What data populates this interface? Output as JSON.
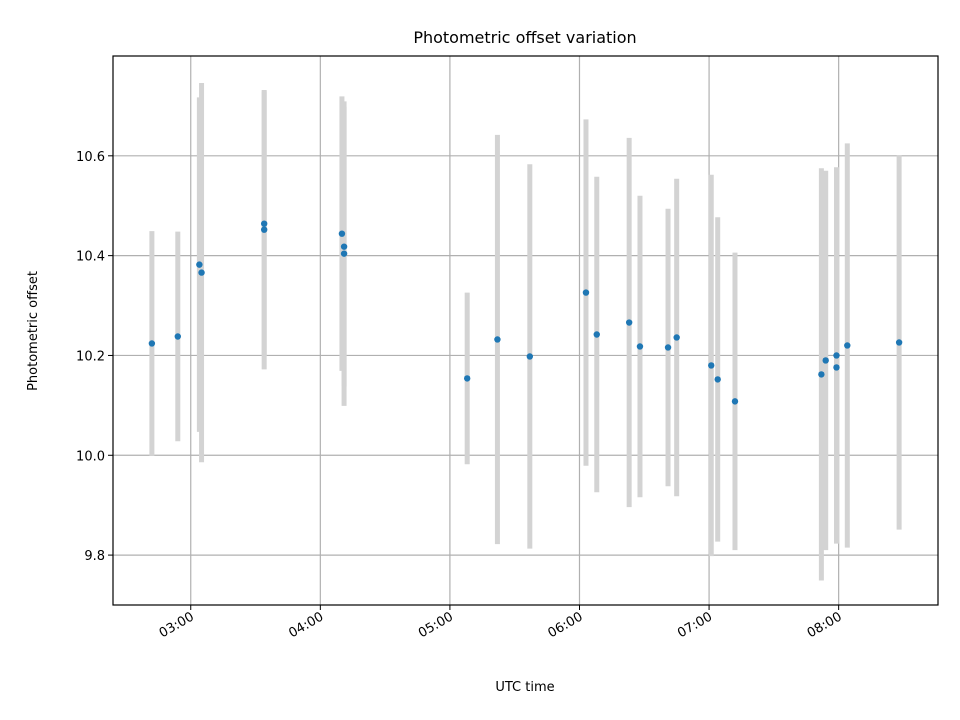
{
  "chart_data": {
    "type": "scatter",
    "title": "Photometric offset variation",
    "xlabel": "UTC time",
    "ylabel": "Photometric offset",
    "x_range": [
      "02:24",
      "08:46"
    ],
    "ylim": [
      9.7,
      10.8
    ],
    "x_ticks": [
      "03:00",
      "04:00",
      "05:00",
      "06:00",
      "07:00",
      "08:00"
    ],
    "y_ticks": [
      9.8,
      10.0,
      10.2,
      10.4,
      10.6
    ],
    "y_tick_labels": [
      "9.8",
      "10.0",
      "10.2",
      "10.4",
      "10.6"
    ],
    "grid": true,
    "point_color": "#1f77b4",
    "errorbar_color": "#d3d3d3",
    "points": [
      {
        "time": "02:42",
        "y": 10.224,
        "yerr": 0.225
      },
      {
        "time": "02:54",
        "y": 10.238,
        "yerr": 0.21
      },
      {
        "time": "03:04",
        "y": 10.382,
        "yerr": 0.335
      },
      {
        "time": "03:05",
        "y": 10.366,
        "yerr": 0.38
      },
      {
        "time": "03:34",
        "y": 10.464,
        "yerr": 0.265
      },
      {
        "time": "03:34",
        "y": 10.452,
        "yerr": 0.28
      },
      {
        "time": "04:10",
        "y": 10.444,
        "yerr": 0.275
      },
      {
        "time": "04:11",
        "y": 10.418,
        "yerr": 0.28
      },
      {
        "time": "04:11",
        "y": 10.404,
        "yerr": 0.305
      },
      {
        "time": "05:08",
        "y": 10.154,
        "yerr": 0.172
      },
      {
        "time": "05:22",
        "y": 10.232,
        "yerr": 0.41
      },
      {
        "time": "05:37",
        "y": 10.198,
        "yerr": 0.385
      },
      {
        "time": "06:03",
        "y": 10.326,
        "yerr": 0.347
      },
      {
        "time": "06:08",
        "y": 10.242,
        "yerr": 0.316
      },
      {
        "time": "06:23",
        "y": 10.266,
        "yerr": 0.37
      },
      {
        "time": "06:28",
        "y": 10.218,
        "yerr": 0.302
      },
      {
        "time": "06:41",
        "y": 10.216,
        "yerr": 0.278
      },
      {
        "time": "06:45",
        "y": 10.236,
        "yerr": 0.318
      },
      {
        "time": "07:01",
        "y": 10.18,
        "yerr": 0.382
      },
      {
        "time": "07:04",
        "y": 10.152,
        "yerr": 0.325
      },
      {
        "time": "07:12",
        "y": 10.108,
        "yerr": 0.298
      },
      {
        "time": "07:52",
        "y": 10.162,
        "yerr": 0.413
      },
      {
        "time": "07:54",
        "y": 10.19,
        "yerr": 0.38
      },
      {
        "time": "07:59",
        "y": 10.2,
        "yerr": 0.377
      },
      {
        "time": "07:59",
        "y": 10.176,
        "yerr": 0.35
      },
      {
        "time": "08:04",
        "y": 10.22,
        "yerr": 0.405
      },
      {
        "time": "08:28",
        "y": 10.226,
        "yerr": 0.375
      }
    ]
  }
}
